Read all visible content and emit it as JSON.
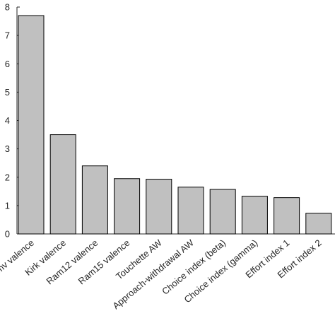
{
  "chart_data": {
    "type": "bar",
    "title": "",
    "xlabel": "",
    "ylabel": "",
    "categories": [
      "Vamv valence",
      "Kirk valence",
      "Ram12 valence",
      "Ram15 valence",
      "Touchette AW",
      "Approach-withdrawal AW",
      "Choice index (beta)",
      "Choice index (gamma)",
      "Effort index 1",
      "Effort index 2"
    ],
    "values": [
      7.7,
      3.5,
      2.4,
      1.95,
      1.93,
      1.65,
      1.57,
      1.33,
      1.28,
      0.73
    ],
    "ylim": [
      0,
      8
    ],
    "yticks": [
      0,
      1,
      2,
      3,
      4,
      5,
      6,
      7,
      8
    ],
    "grid": false,
    "legend": "none",
    "colors": {
      "bar_fill": "#c0c0c0",
      "bar_edge": "#000000",
      "axis": "#262626"
    }
  }
}
